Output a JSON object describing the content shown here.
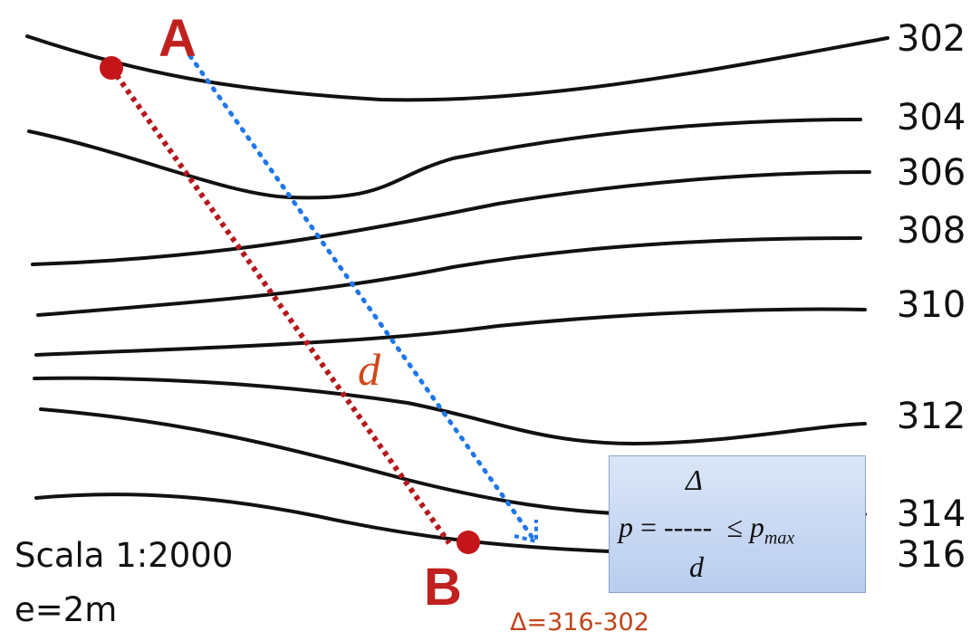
{
  "contour_labels": [
    "302",
    "304",
    "306",
    "308",
    "310",
    "312",
    "314",
    "316"
  ],
  "points": {
    "a": "A",
    "b": "B"
  },
  "distance_label": "d",
  "scale": "Scala 1:2000",
  "equidistance": "e=2m",
  "delta_note": "Δ=316-302",
  "formula": {
    "numerator": "Δ",
    "lhs": "p",
    "equals": "=",
    "dashes": "-----",
    "leq": "≤",
    "pmax_base": "p",
    "pmax_sub": "max",
    "denominator": "d"
  },
  "colors": {
    "contour": "#111111",
    "path_ab": "#b5191c",
    "distance_arrow": "#1f77e8",
    "point_marker": "#c4151a"
  }
}
